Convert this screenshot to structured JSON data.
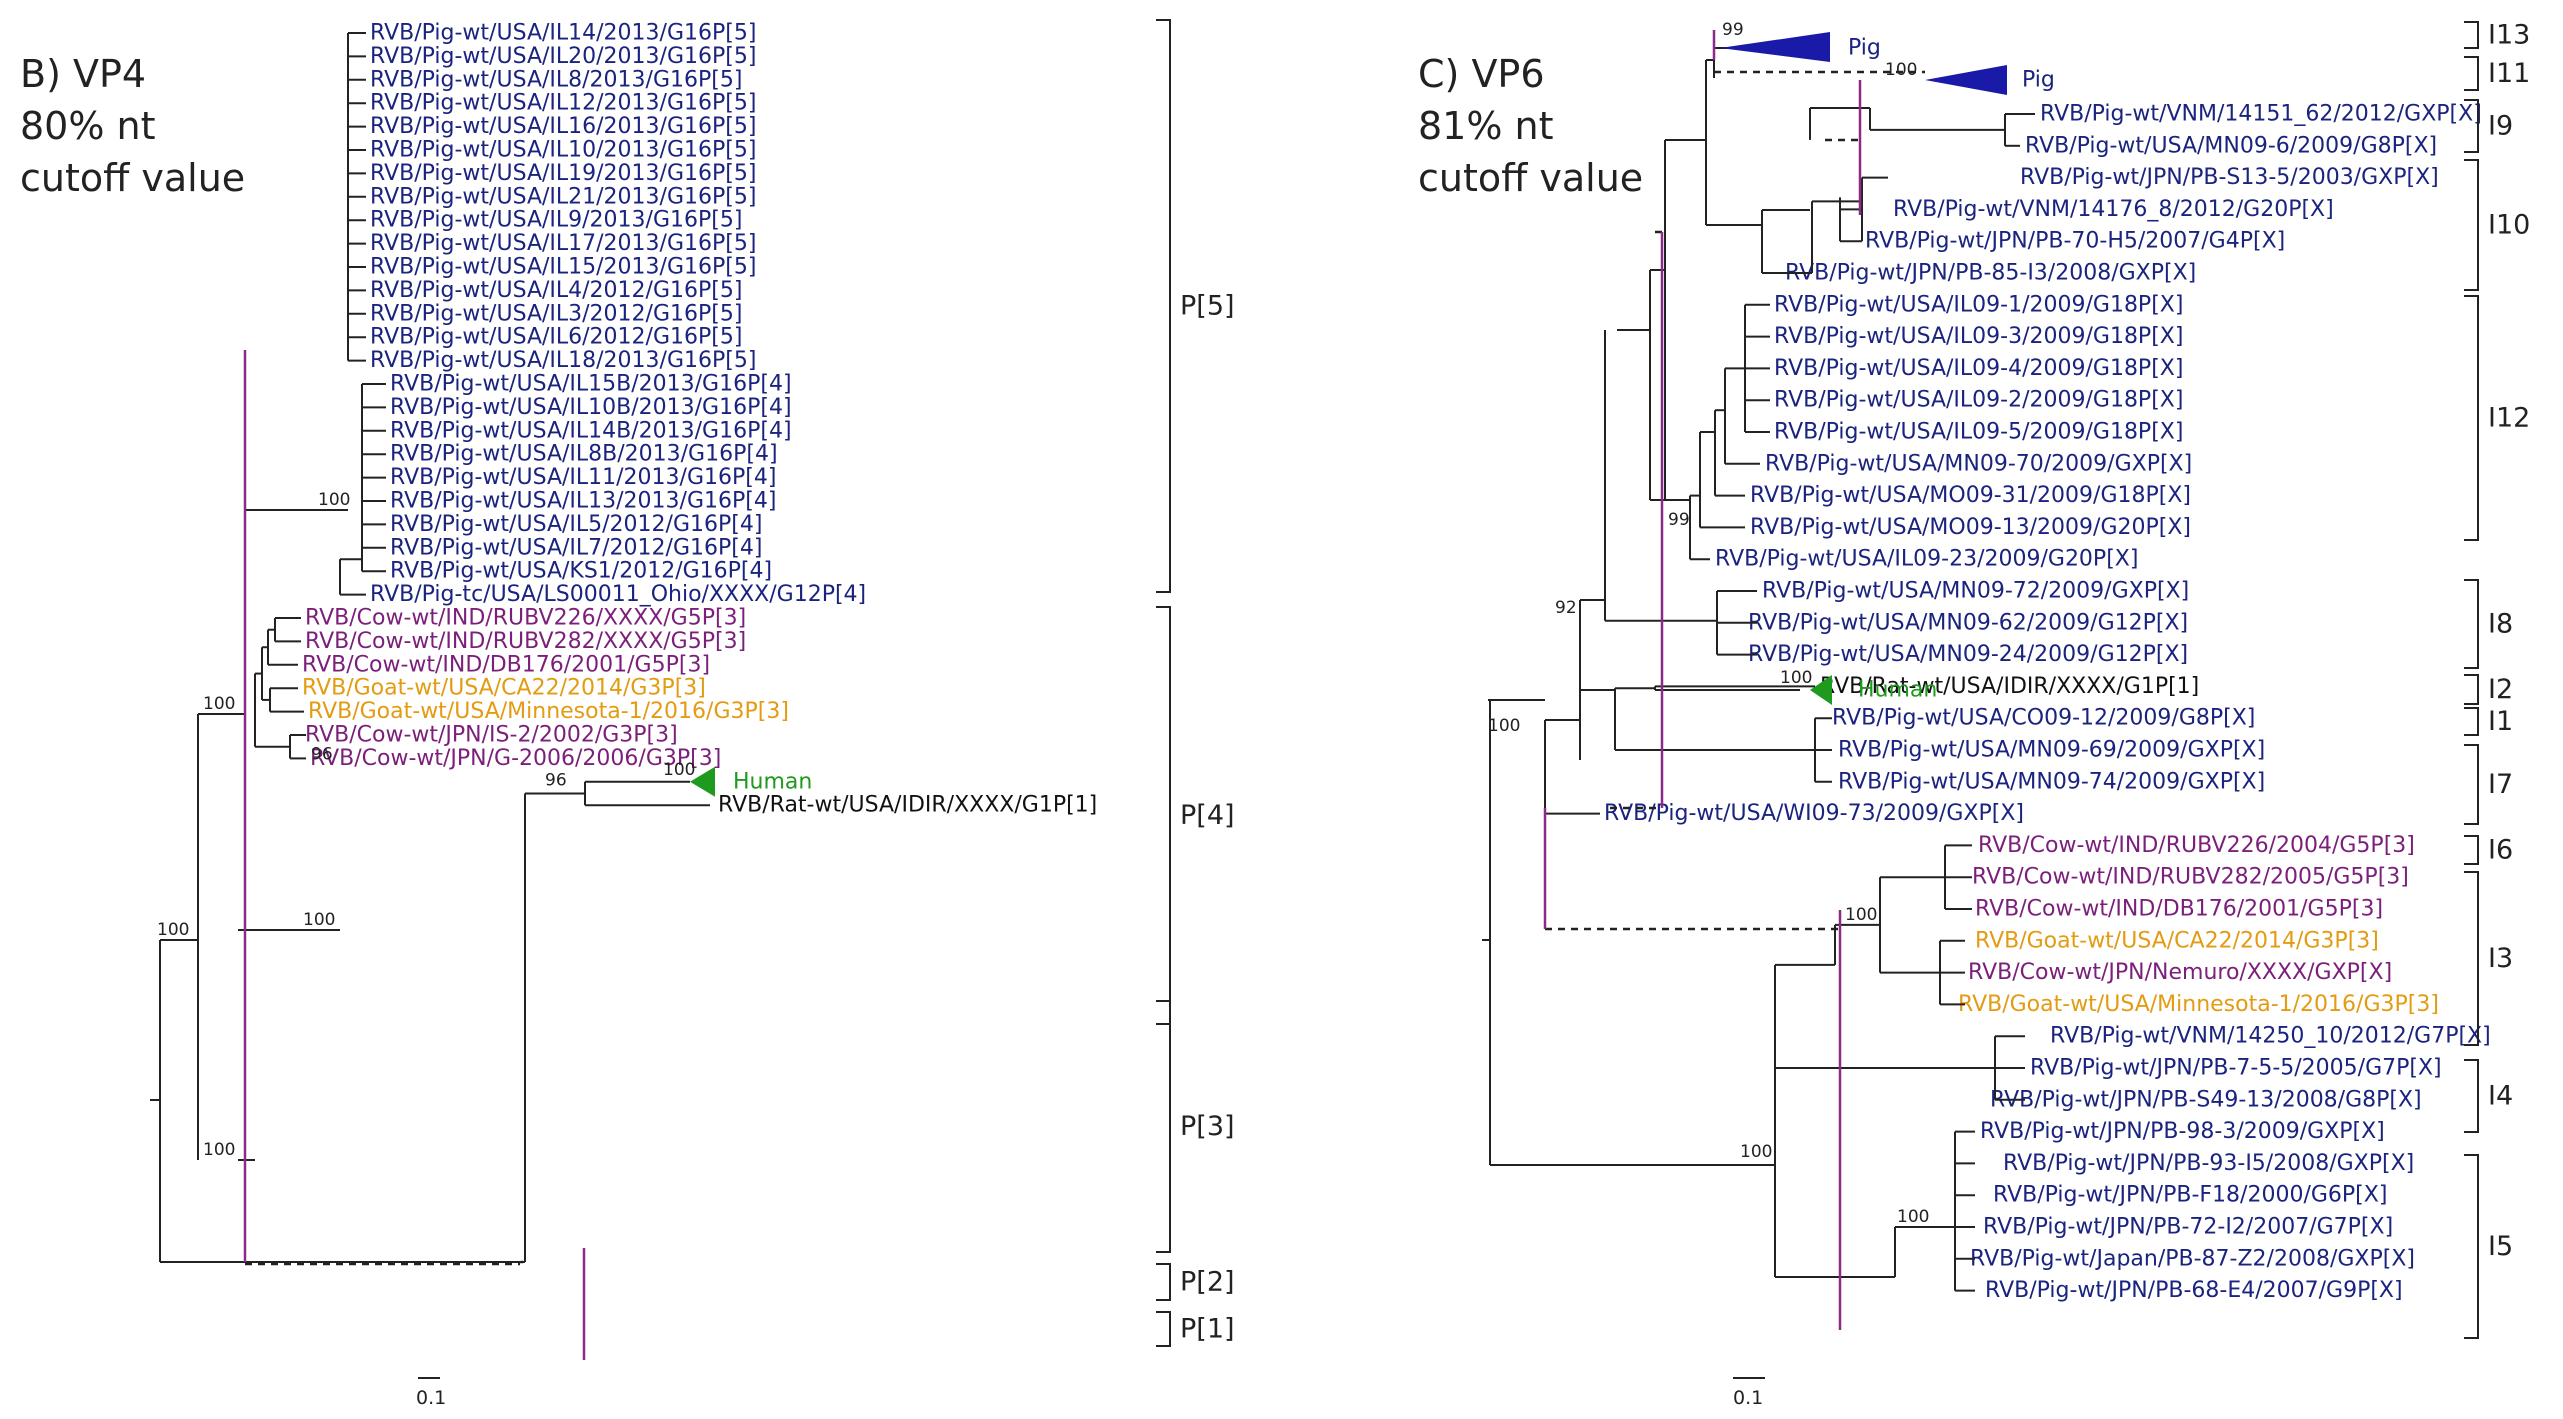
{
  "colors": {
    "pig": "#1a237e",
    "cow": "#7b1f7b",
    "goat": "#e39b12",
    "human": "#1e9a1e",
    "rat": "#111111",
    "cutoff_line": "#8b2a8b",
    "branch": "#222222"
  },
  "panel_b": {
    "heading_lines": [
      "B) VP4",
      "80% nt",
      "cutoff value"
    ],
    "scale_label": "0.1",
    "leaves": [
      {
        "label": "RVB/Pig-wt/USA/IL14/2013/G16P[5]",
        "host": "pig"
      },
      {
        "label": "RVB/Pig-wt/USA/IL20/2013/G16P[5]",
        "host": "pig"
      },
      {
        "label": "RVB/Pig-wt/USA/IL8/2013/G16P[5]",
        "host": "pig"
      },
      {
        "label": "RVB/Pig-wt/USA/IL12/2013/G16P[5]",
        "host": "pig"
      },
      {
        "label": "RVB/Pig-wt/USA/IL16/2013/G16P[5]",
        "host": "pig"
      },
      {
        "label": "RVB/Pig-wt/USA/IL10/2013/G16P[5]",
        "host": "pig"
      },
      {
        "label": "RVB/Pig-wt/USA/IL19/2013/G16P[5]",
        "host": "pig"
      },
      {
        "label": "RVB/Pig-wt/USA/IL21/2013/G16P[5]",
        "host": "pig"
      },
      {
        "label": "RVB/Pig-wt/USA/IL9/2013/G16P[5]",
        "host": "pig"
      },
      {
        "label": "RVB/Pig-wt/USA/IL17/2013/G16P[5]",
        "host": "pig"
      },
      {
        "label": "RVB/Pig-wt/USA/IL15/2013/G16P[5]",
        "host": "pig"
      },
      {
        "label": "RVB/Pig-wt/USA/IL4/2012/G16P[5]",
        "host": "pig"
      },
      {
        "label": "RVB/Pig-wt/USA/IL3/2012/G16P[5]",
        "host": "pig"
      },
      {
        "label": "RVB/Pig-wt/USA/IL6/2012/G16P[5]",
        "host": "pig"
      },
      {
        "label": "RVB/Pig-wt/USA/IL18/2013/G16P[5]",
        "host": "pig"
      },
      {
        "label": "RVB/Pig-wt/USA/IL15B/2013/G16P[4]",
        "host": "pig"
      },
      {
        "label": "RVB/Pig-wt/USA/IL10B/2013/G16P[4]",
        "host": "pig"
      },
      {
        "label": "RVB/Pig-wt/USA/IL14B/2013/G16P[4]",
        "host": "pig"
      },
      {
        "label": "RVB/Pig-wt/USA/IL8B/2013/G16P[4]",
        "host": "pig"
      },
      {
        "label": "RVB/Pig-wt/USA/IL11/2013/G16P[4]",
        "host": "pig"
      },
      {
        "label": "RVB/Pig-wt/USA/IL13/2013/G16P[4]",
        "host": "pig"
      },
      {
        "label": "RVB/Pig-wt/USA/IL5/2012/G16P[4]",
        "host": "pig"
      },
      {
        "label": "RVB/Pig-wt/USA/IL7/2012/G16P[4]",
        "host": "pig"
      },
      {
        "label": "RVB/Pig-wt/USA/KS1/2012/G16P[4]",
        "host": "pig"
      },
      {
        "label": "RVB/Pig-tc/USA/LS00011_Ohio/XXXX/G12P[4]",
        "host": "pig"
      },
      {
        "label": "RVB/Cow-wt/IND/RUBV226/XXXX/G5P[3]",
        "host": "cow"
      },
      {
        "label": "RVB/Cow-wt/IND/RUBV282/XXXX/G5P[3]",
        "host": "cow"
      },
      {
        "label": "RVB/Cow-wt/IND/DB176/2001/G5P[3]",
        "host": "cow"
      },
      {
        "label": "RVB/Goat-wt/USA/CA22/2014/G3P[3]",
        "host": "goat"
      },
      {
        "label": "RVB/Goat-wt/USA/Minnesota-1/2016/G3P[3]",
        "host": "goat"
      },
      {
        "label": "RVB/Cow-wt/JPN/IS-2/2002/G3P[3]",
        "host": "cow"
      },
      {
        "label": "RVB/Cow-wt/JPN/G-2006/2006/G3P[3]",
        "host": "cow"
      },
      {
        "label": "Human",
        "host": "human"
      },
      {
        "label": "RVB/Rat-wt/USA/IDIR/XXXX/G1P[1]",
        "host": "rat"
      }
    ],
    "clades": [
      "P[5]",
      "P[4]",
      "P[3]",
      "P[2]",
      "P[1]"
    ],
    "bootstrap": [
      "100",
      "100",
      "100",
      "96",
      "100",
      "100",
      "100",
      "96"
    ]
  },
  "panel_c": {
    "heading_lines": [
      "C) VP6",
      "81% nt",
      "cutoff value"
    ],
    "scale_label": "0.1",
    "collapsed": [
      {
        "label": "Pig",
        "host": "pig"
      },
      {
        "label": "Pig",
        "host": "pig"
      },
      {
        "label": "Human",
        "host": "human"
      }
    ],
    "leaves": [
      {
        "label": "RVB/Pig-wt/VNM/14151_62/2012/GXP[X]",
        "host": "pig"
      },
      {
        "label": "RVB/Pig-wt/USA/MN09-6/2009/G8P[X]",
        "host": "pig"
      },
      {
        "label": "RVB/Pig-wt/JPN/PB-S13-5/2003/GXP[X]",
        "host": "pig"
      },
      {
        "label": "RVB/Pig-wt/VNM/14176_8/2012/G20P[X]",
        "host": "pig"
      },
      {
        "label": "RVB/Pig-wt/JPN/PB-70-H5/2007/G4P[X]",
        "host": "pig"
      },
      {
        "label": "RVB/Pig-wt/JPN/PB-85-I3/2008/GXP[X]",
        "host": "pig"
      },
      {
        "label": "RVB/Pig-wt/USA/IL09-1/2009/G18P[X]",
        "host": "pig"
      },
      {
        "label": "RVB/Pig-wt/USA/IL09-3/2009/G18P[X]",
        "host": "pig"
      },
      {
        "label": "RVB/Pig-wt/USA/IL09-4/2009/G18P[X]",
        "host": "pig"
      },
      {
        "label": "RVB/Pig-wt/USA/IL09-2/2009/G18P[X]",
        "host": "pig"
      },
      {
        "label": "RVB/Pig-wt/USA/IL09-5/2009/G18P[X]",
        "host": "pig"
      },
      {
        "label": "RVB/Pig-wt/USA/MN09-70/2009/GXP[X]",
        "host": "pig"
      },
      {
        "label": "RVB/Pig-wt/USA/MO09-31/2009/G18P[X]",
        "host": "pig"
      },
      {
        "label": "RVB/Pig-wt/USA/MO09-13/2009/G20P[X]",
        "host": "pig"
      },
      {
        "label": "RVB/Pig-wt/USA/IL09-23/2009/G20P[X]",
        "host": "pig"
      },
      {
        "label": "RVB/Pig-wt/USA/MN09-72/2009/GXP[X]",
        "host": "pig"
      },
      {
        "label": "RVB/Pig-wt/USA/MN09-62/2009/G12P[X]",
        "host": "pig"
      },
      {
        "label": "RVB/Pig-wt/USA/MN09-24/2009/G12P[X]",
        "host": "pig"
      },
      {
        "label": "RVB/Rat-wt/USA/IDIR/XXXX/G1P[1]",
        "host": "rat"
      },
      {
        "label": "RVB/Pig-wt/USA/CO09-12/2009/G8P[X]",
        "host": "pig"
      },
      {
        "label": "RVB/Pig-wt/USA/MN09-69/2009/GXP[X]",
        "host": "pig"
      },
      {
        "label": "RVB/Pig-wt/USA/MN09-74/2009/GXP[X]",
        "host": "pig"
      },
      {
        "label": "RVB/Pig-wt/USA/WI09-73/2009/GXP[X]",
        "host": "pig"
      },
      {
        "label": "RVB/Cow-wt/IND/RUBV226/2004/G5P[3]",
        "host": "cow"
      },
      {
        "label": "RVB/Cow-wt/IND/RUBV282/2005/G5P[3]",
        "host": "cow"
      },
      {
        "label": "RVB/Cow-wt/IND/DB176/2001/G5P[3]",
        "host": "cow"
      },
      {
        "label": "RVB/Goat-wt/USA/CA22/2014/G3P[3]",
        "host": "goat"
      },
      {
        "label": "RVB/Cow-wt/JPN/Nemuro/XXXX/GXP[X]",
        "host": "cow"
      },
      {
        "label": "RVB/Goat-wt/USA/Minnesota-1/2016/G3P[3]",
        "host": "goat"
      },
      {
        "label": "RVB/Pig-wt/VNM/14250_10/2012/G7P[X]",
        "host": "pig"
      },
      {
        "label": "RVB/Pig-wt/JPN/PB-7-5-5/2005/G7P[X]",
        "host": "pig"
      },
      {
        "label": "RVB/Pig-wt/JPN/PB-S49-13/2008/G8P[X]",
        "host": "pig"
      },
      {
        "label": "RVB/Pig-wt/JPN/PB-98-3/2009/GXP[X]",
        "host": "pig"
      },
      {
        "label": "RVB/Pig-wt/JPN/PB-93-I5/2008/GXP[X]",
        "host": "pig"
      },
      {
        "label": "RVB/Pig-wt/JPN/PB-F18/2000/G6P[X]",
        "host": "pig"
      },
      {
        "label": "RVB/Pig-wt/JPN/PB-72-I2/2007/G7P[X]",
        "host": "pig"
      },
      {
        "label": "RVB/Pig-wt/Japan/PB-87-Z2/2008/GXP[X]",
        "host": "pig"
      },
      {
        "label": "RVB/Pig-wt/JPN/PB-68-E4/2007/G9P[X]",
        "host": "pig"
      }
    ],
    "clades": [
      "I13",
      "I11",
      "I9",
      "I10",
      "I12",
      "I8",
      "I2",
      "I1",
      "I7",
      "I6",
      "I3",
      "I4",
      "I5"
    ],
    "bootstrap": [
      "99",
      "100",
      "99",
      "92",
      "100",
      "100",
      "100",
      "100",
      "100"
    ]
  }
}
